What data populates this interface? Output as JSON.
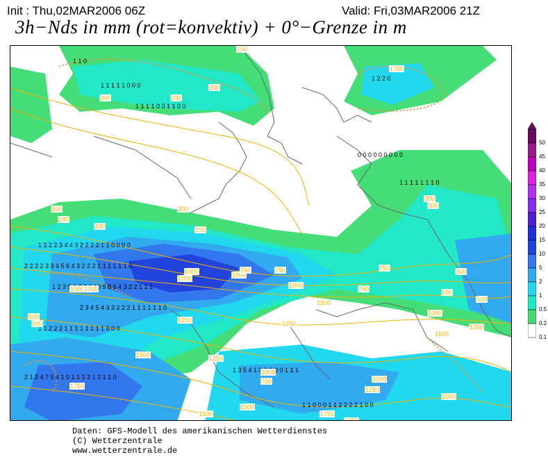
{
  "header": {
    "init": "Init : Thu,02MAR2006 06Z",
    "valid": "Valid: Fri,03MAR2006 21Z",
    "title": "3h−Nds in mm (rot=konvektiv) + 0°−Grenze in m"
  },
  "colors": {
    "land": "#ffffff",
    "coast": "#666666",
    "contour": "#f0b400",
    "convective": "#e8902f",
    "c_0_1": "#44dd77",
    "c_0_5": "#22e8c8",
    "c_1": "#22d8ee",
    "c_2": "#33aaf0",
    "c_5": "#3377ee",
    "c_10": "#2244dd"
  },
  "freezing_level_labels": [
    "100",
    "200",
    "300",
    "500",
    "750",
    "1000",
    "1250",
    "1500",
    "1750"
  ],
  "legend": {
    "items": [
      {
        "label": "50",
        "color": "#6a0a5e"
      },
      {
        "label": "45",
        "color": "#9a1a8a"
      },
      {
        "label": "40",
        "color": "#c000c0"
      },
      {
        "label": "35",
        "color": "#e020e0"
      },
      {
        "label": "30",
        "color": "#b030f0"
      },
      {
        "label": "25",
        "color": "#7d30f0"
      },
      {
        "label": "20",
        "color": "#5020d0"
      },
      {
        "label": "15",
        "color": "#2030d8"
      },
      {
        "label": "10",
        "color": "#2244dd"
      },
      {
        "label": "5",
        "color": "#3377ee"
      },
      {
        "label": "2",
        "color": "#33aaf0"
      },
      {
        "label": "1",
        "color": "#22d8ee"
      },
      {
        "label": "0.5",
        "color": "#22e8c8"
      },
      {
        "label": "0.2",
        "color": "#44dd77"
      },
      {
        "label": "0.1",
        "color": "#ffffff"
      }
    ]
  },
  "footer": {
    "line1": "Daten: GFS-Modell des amerikanischen Wetterdienstes",
    "line2": "(C) Wetterzentrale",
    "line3": "www.wetterzentrale.de"
  }
}
